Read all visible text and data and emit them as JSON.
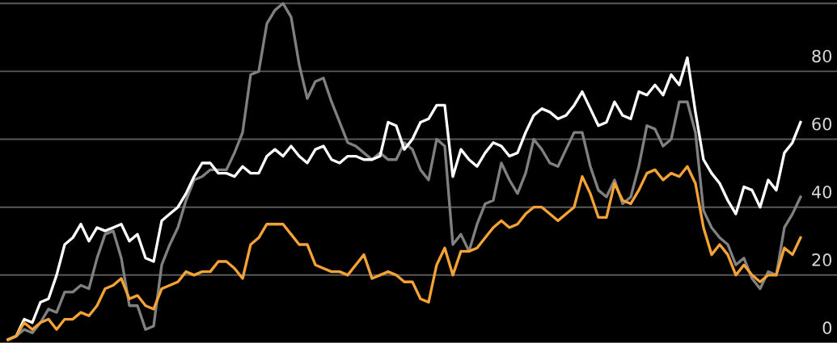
{
  "chart_data": {
    "type": "line",
    "categories": [
      null,
      null,
      null,
      null,
      null,
      null,
      null,
      null,
      null,
      null,
      null,
      null,
      null,
      null,
      null,
      null,
      null,
      null,
      null,
      null,
      null,
      null,
      null,
      null,
      null,
      null,
      null,
      null,
      null,
      null,
      null,
      null,
      null,
      null,
      null,
      null,
      null,
      null,
      null,
      null,
      null,
      null,
      null,
      null,
      null,
      null,
      null,
      null,
      null,
      null,
      null,
      null,
      null,
      null,
      null,
      null,
      null,
      null,
      null,
      null,
      null,
      null,
      null,
      null,
      null,
      null,
      null,
      null,
      null,
      null,
      null,
      null,
      null,
      null,
      null,
      null,
      null,
      null,
      null,
      null,
      null,
      null,
      null,
      null,
      null,
      null,
      null,
      null,
      null,
      null,
      null,
      null,
      null,
      null,
      null,
      null,
      null,
      null,
      null
    ],
    "series": [
      {
        "color": "#808080",
        "values": [
          1,
          2,
          4,
          3,
          6,
          10,
          9,
          15,
          15,
          17,
          16,
          25,
          32,
          33,
          25,
          11,
          11,
          4,
          5,
          23,
          29,
          34,
          42,
          48,
          49,
          51,
          51,
          51,
          56,
          62,
          79,
          80,
          94,
          98,
          100,
          96,
          82,
          72,
          77,
          78,
          71,
          65,
          59,
          58,
          56,
          54,
          56,
          54,
          54,
          59,
          57,
          51,
          48,
          60,
          58,
          29,
          32,
          27,
          35,
          41,
          42,
          53,
          48,
          44,
          50,
          60,
          57,
          53,
          52,
          57,
          62,
          62,
          52,
          45,
          43,
          48,
          41,
          43,
          52,
          64,
          63,
          58,
          60,
          71,
          71,
          62,
          39,
          34,
          31,
          29,
          23,
          25,
          19,
          16,
          21,
          20,
          34,
          38,
          43
        ]
      },
      {
        "color": "#ffffff",
        "values": [
          1,
          2,
          7,
          6,
          12,
          13,
          20,
          29,
          31,
          35,
          30,
          34,
          33,
          34,
          35,
          30,
          32,
          25,
          24,
          36,
          38,
          40,
          44,
          49,
          53,
          53,
          50,
          50,
          49,
          52,
          50,
          50,
          55,
          57,
          55,
          58,
          55,
          53,
          57,
          58,
          54,
          53,
          55,
          55,
          54,
          54,
          55,
          65,
          64,
          57,
          60,
          65,
          66,
          70,
          70,
          49,
          57,
          54,
          52,
          56,
          59,
          58,
          55,
          56,
          62,
          67,
          69,
          68,
          66,
          67,
          70,
          74,
          69,
          64,
          65,
          71,
          67,
          66,
          74,
          73,
          76,
          73,
          79,
          76,
          84,
          68,
          54,
          50,
          47,
          42,
          38,
          46,
          45,
          40,
          48,
          45,
          56,
          59,
          65
        ]
      },
      {
        "color": "#f5a236",
        "values": [
          1,
          2,
          6,
          4,
          6,
          7,
          4,
          7,
          7,
          9,
          8,
          11,
          16,
          17,
          19,
          13,
          14,
          11,
          10,
          16,
          17,
          18,
          21,
          20,
          21,
          21,
          24,
          24,
          22,
          19,
          29,
          31,
          35,
          35,
          35,
          32,
          29,
          29,
          23,
          22,
          21,
          21,
          20,
          23,
          26,
          19,
          20,
          21,
          20,
          18,
          18,
          13,
          12,
          23,
          28,
          20,
          27,
          27,
          28,
          31,
          34,
          36,
          34,
          35,
          38,
          40,
          40,
          38,
          36,
          38,
          40,
          49,
          44,
          37,
          37,
          47,
          42,
          41,
          45,
          50,
          51,
          48,
          50,
          49,
          52,
          47,
          34,
          26,
          29,
          26,
          20,
          23,
          20,
          18,
          20,
          20,
          28,
          26,
          31
        ]
      }
    ],
    "ylim": [
      0,
      101
    ],
    "yticks": [
      0,
      20,
      40,
      60,
      80,
      {
        "value": 100,
        "label": null
      }
    ],
    "grid": "y",
    "tick_labels": "y",
    "legend": false,
    "marker": "none",
    "line_style": "solid"
  }
}
